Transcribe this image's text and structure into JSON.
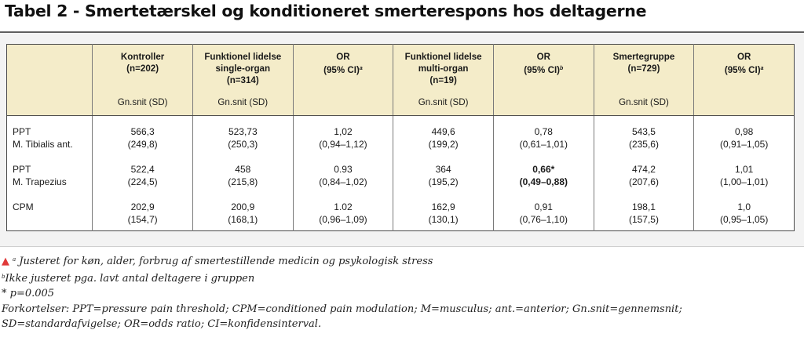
{
  "title": "Tabel 2 - Smertetærskel og konditioneret smerterespons hos deltagerne",
  "columns": [
    {
      "label": "",
      "sup": "",
      "sub": ""
    },
    {
      "label": "Kontroller\n(n=202)",
      "sup": "",
      "sub": "Gn.snit (SD)"
    },
    {
      "label": "Funktionel lidelse\nsingle-organ\n(n=314)",
      "sup": "",
      "sub": "Gn.snit (SD)"
    },
    {
      "label": "OR\n(95% CI)",
      "sup": "a",
      "sub": ""
    },
    {
      "label": "Funktionel lidelse\nmulti-organ\n(n=19)",
      "sup": "",
      "sub": "Gn.snit (SD)"
    },
    {
      "label": "OR\n(95% CI)",
      "sup": "b",
      "sub": ""
    },
    {
      "label": "Smertegruppe\n(n=729)",
      "sup": "",
      "sub": "Gn.snit (SD)"
    },
    {
      "label": "OR\n(95% CI)",
      "sup": "a",
      "sub": ""
    }
  ],
  "rows": [
    {
      "label1": "PPT",
      "label2": "M. Tibialis ant.",
      "cells": [
        {
          "v": "566,3",
          "ci": "(249,8)"
        },
        {
          "v": "523,73",
          "ci": "(250,3)"
        },
        {
          "v": "1,02",
          "ci": "(0,94–1,12)"
        },
        {
          "v": "449,6",
          "ci": "(199,2)"
        },
        {
          "v": "0,78",
          "ci": "(0,61–1,01)"
        },
        {
          "v": "543,5",
          "ci": "(235,6)"
        },
        {
          "v": "0,98",
          "ci": "(0,91–1,05)"
        }
      ]
    },
    {
      "label1": "PPT",
      "label2": "M. Trapezius",
      "cells": [
        {
          "v": "522,4",
          "ci": "(224,5)"
        },
        {
          "v": "458",
          "ci": "(215,8)"
        },
        {
          "v": "0.93",
          "ci": "(0,84–1,02)"
        },
        {
          "v": "364",
          "ci": "(195,2)"
        },
        {
          "v": "0,66*",
          "ci": "(0,49–0,88)"
        },
        {
          "v": "474,2",
          "ci": "(207,6)"
        },
        {
          "v": "1,01",
          "ci": "(1,00–1,01)"
        }
      ]
    },
    {
      "label1": "CPM",
      "label2": "",
      "cells": [
        {
          "v": "202,9",
          "ci": "(154,7)"
        },
        {
          "v": "200,9",
          "ci": "(168,1)"
        },
        {
          "v": "1.02",
          "ci": "(0,96–1,09)"
        },
        {
          "v": "162,9",
          "ci": "(130,1)"
        },
        {
          "v": "0,91",
          "ci": "(0,76–1,10)"
        },
        {
          "v": "198,1",
          "ci": "(157,5)"
        },
        {
          "v": "1,0",
          "ci": "(0,95–1,05)"
        }
      ]
    }
  ],
  "notes": {
    "a_mark": "a",
    "a_text": "Justeret for køn, alder, forbrug af smertestillende medicin og psykologisk stress",
    "b_mark": "b",
    "b_text": "Ikke justeret pga. lavt antal deltagere i gruppen",
    "star": "* p=0.005",
    "abbr1": "Forkortelser: PPT=pressure pain threshold; CPM=conditioned pain modulation; M=musculus; ant.=anterior; Gn.snit=gennemsnit;",
    "abbr2": "SD=standardafvigelse; OR=odds ratio; CI=konfidensinterval."
  },
  "colors": {
    "header_bg": "#f4ecc9",
    "panel_bg": "#f3f3f3",
    "accent_red": "#e03a3a"
  }
}
